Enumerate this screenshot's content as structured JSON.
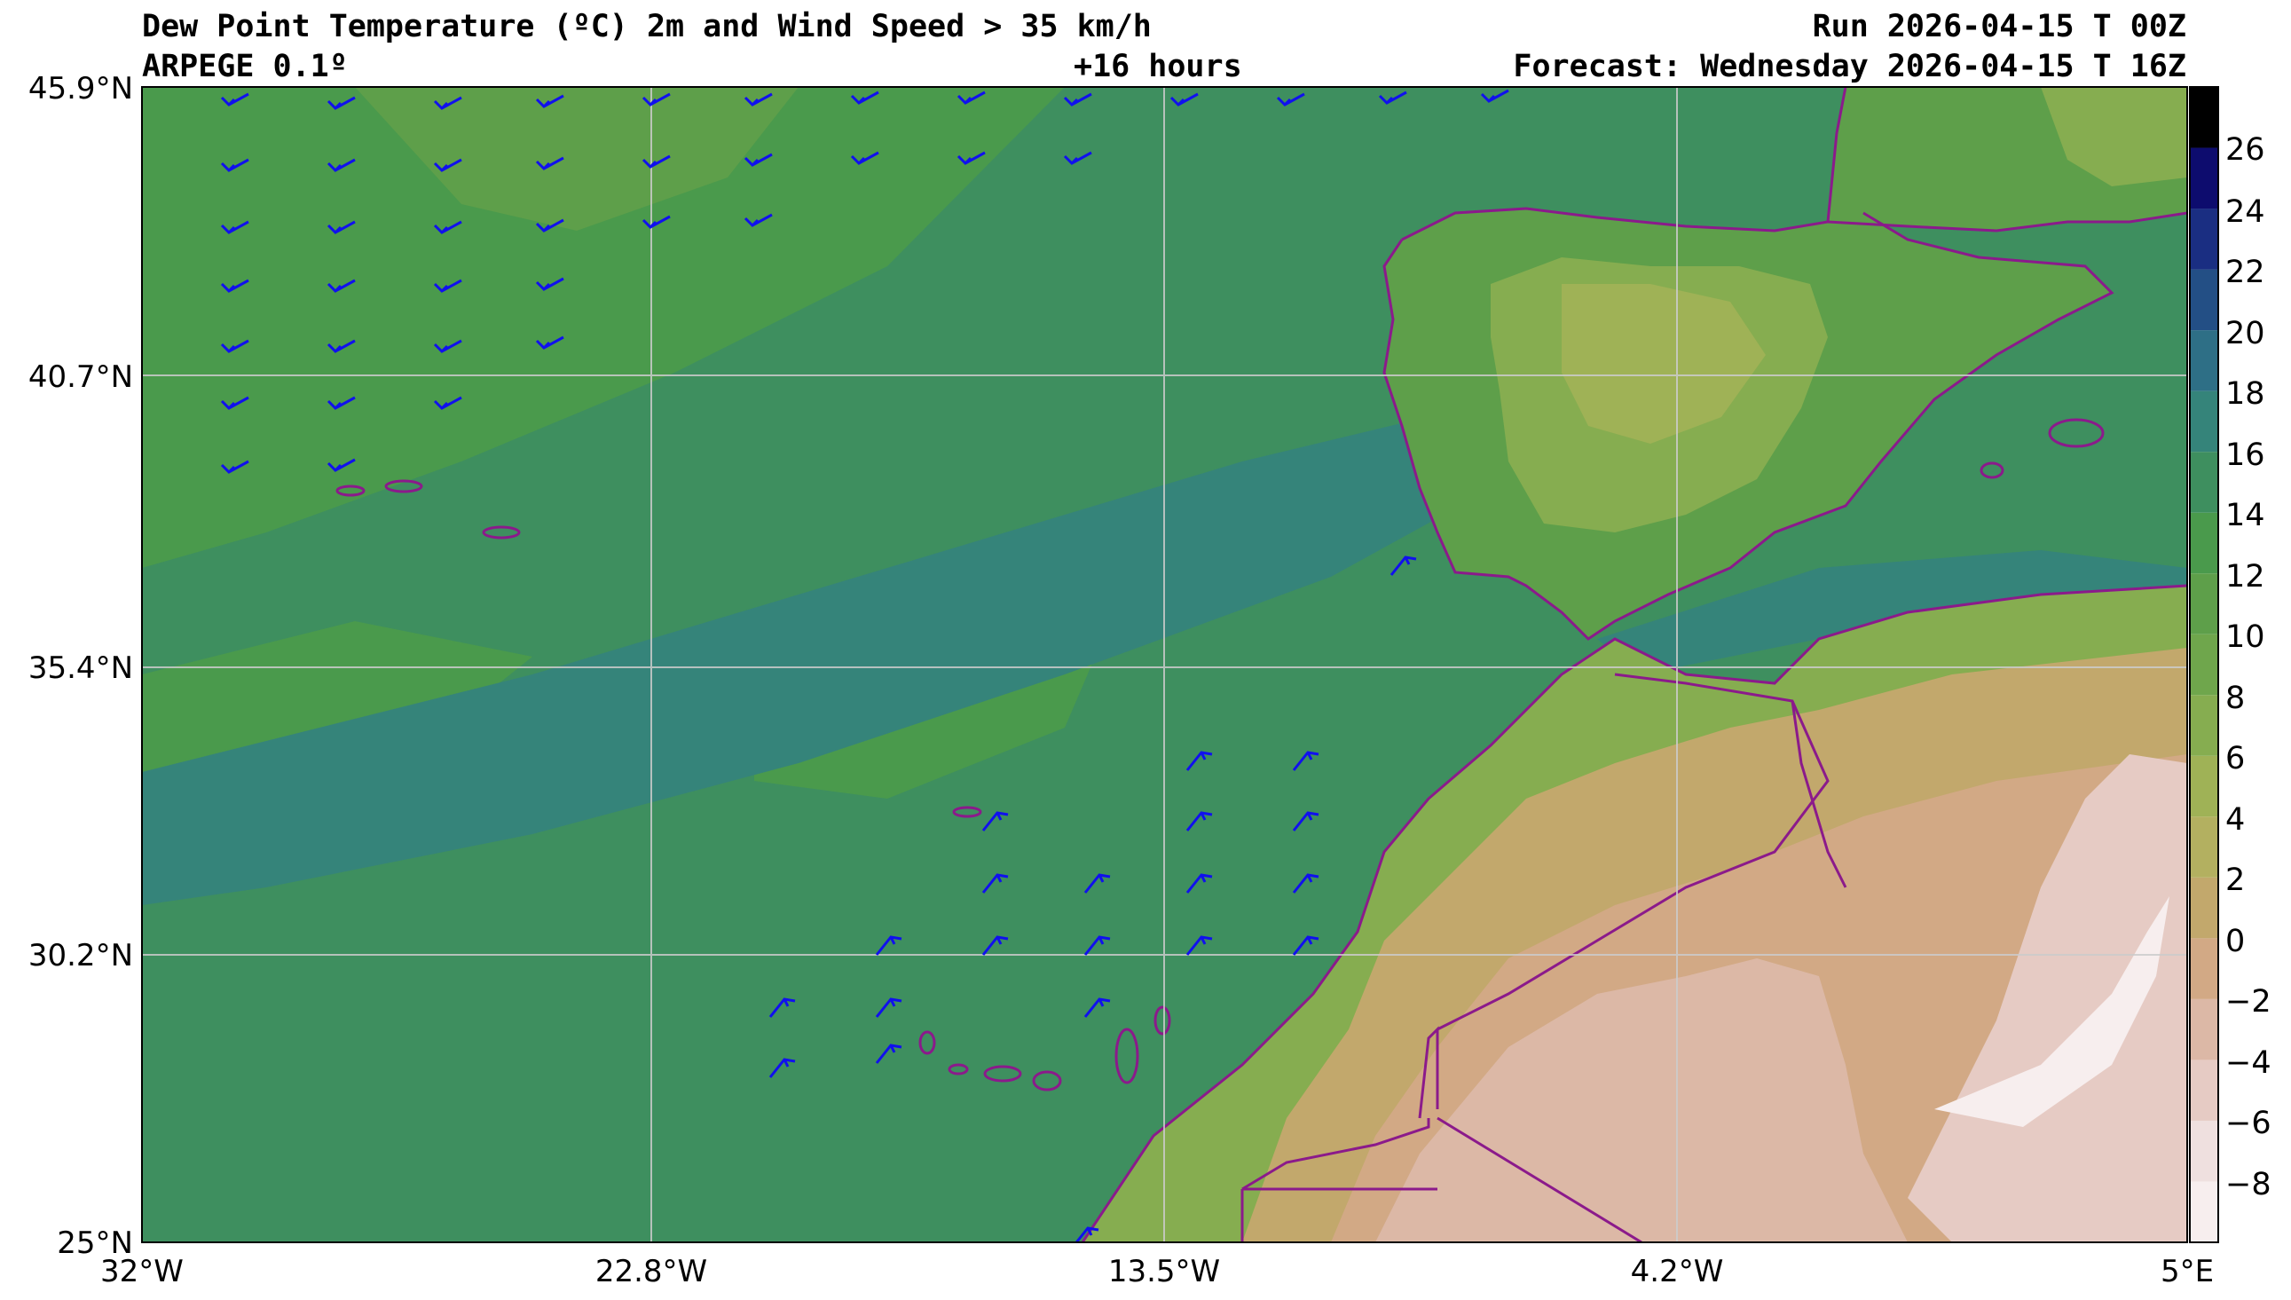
{
  "header": {
    "title": "Dew Point Temperature (ºC) 2m and Wind Speed > 35 km/h",
    "model": "ARPEGE 0.1º",
    "lead": "+16 hours",
    "run": "Run 2026-04-15 T 00Z",
    "forecast": "Forecast: Wednesday 2026-04-15 T 16Z"
  },
  "axes": {
    "lat_ticks": [
      "45.9°N",
      "40.7°N",
      "35.4°N",
      "30.2°N",
      "25°N"
    ],
    "lon_ticks": [
      "32°W",
      "22.8°W",
      "13.5°W",
      "4.2°W",
      "5°E"
    ],
    "lat_range": [
      25,
      45.9
    ],
    "lon_range": [
      -32,
      5
    ]
  },
  "colorbar": {
    "ticks": [
      "26",
      "24",
      "22",
      "20",
      "18",
      "16",
      "14",
      "12",
      "10",
      "8",
      "6",
      "4",
      "2",
      "0",
      "−2",
      "−4",
      "−6",
      "−8"
    ],
    "bands": [
      {
        "from": -10,
        "to": -8,
        "color": "#f7eeee"
      },
      {
        "from": -8,
        "to": -6,
        "color": "#efe0df"
      },
      {
        "from": -6,
        "to": -4,
        "color": "#e6cbc4"
      },
      {
        "from": -4,
        "to": -2,
        "color": "#dcb8a6"
      },
      {
        "from": -2,
        "to": 0,
        "color": "#d2a985"
      },
      {
        "from": 0,
        "to": 2,
        "color": "#c2a86c"
      },
      {
        "from": 2,
        "to": 4,
        "color": "#b3b060"
      },
      {
        "from": 4,
        "to": 6,
        "color": "#9fb256"
      },
      {
        "from": 6,
        "to": 8,
        "color": "#86ad50"
      },
      {
        "from": 8,
        "to": 10,
        "color": "#6fa64c"
      },
      {
        "from": 10,
        "to": 12,
        "color": "#5e9f4a"
      },
      {
        "from": 12,
        "to": 14,
        "color": "#4a9a4c"
      },
      {
        "from": 14,
        "to": 16,
        "color": "#3e8f5f"
      },
      {
        "from": 16,
        "to": 18,
        "color": "#35847a"
      },
      {
        "from": 18,
        "to": 20,
        "color": "#2e6f86"
      },
      {
        "from": 20,
        "to": 22,
        "color": "#234f85"
      },
      {
        "from": 22,
        "to": 24,
        "color": "#1a2e82"
      },
      {
        "from": 24,
        "to": 26,
        "color": "#0d0c6e"
      },
      {
        "from": 26,
        "to": 28,
        "color": "#000000"
      }
    ]
  },
  "colors": {
    "coastline": "#8b1a8b",
    "wind_barb": "#1010ee",
    "grid": "#cccccc"
  }
}
